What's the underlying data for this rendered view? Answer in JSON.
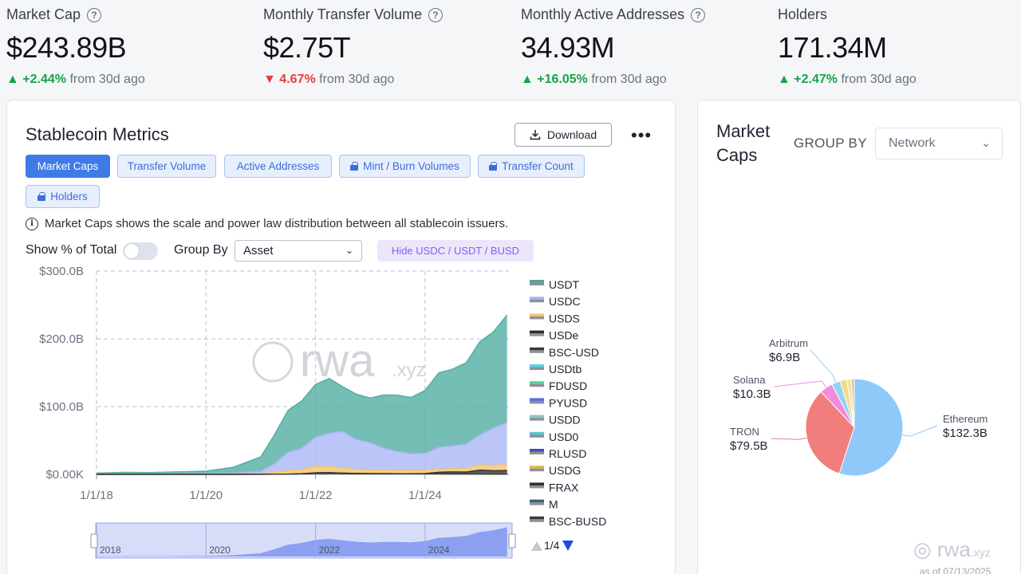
{
  "kpis": [
    {
      "title": "Market Cap",
      "value": "$243.89B",
      "direction": "up",
      "change": "+2.44%",
      "tail": "from 30d ago",
      "help": true
    },
    {
      "title": "Monthly Transfer Volume",
      "value": "$2.75T",
      "direction": "down",
      "change": "4.67%",
      "tail": "from 30d ago",
      "help": true
    },
    {
      "title": "Monthly Active Addresses",
      "value": "34.93M",
      "direction": "up",
      "change": "+16.05%",
      "tail": "from 30d ago",
      "help": true
    },
    {
      "title": "Holders",
      "value": "171.34M",
      "direction": "up",
      "change": "+2.47%",
      "tail": "from 30d ago",
      "help": false
    }
  ],
  "metrics": {
    "title": "Stablecoin Metrics",
    "download_label": "Download",
    "more_label": "•••",
    "tabs": [
      {
        "label": "Market Caps",
        "active": true,
        "locked": false
      },
      {
        "label": "Transfer Volume",
        "active": false,
        "locked": false
      },
      {
        "label": "Active Addresses",
        "active": false,
        "locked": false
      },
      {
        "label": "Mint / Burn Volumes",
        "active": false,
        "locked": true
      },
      {
        "label": "Transfer Count",
        "active": false,
        "locked": true
      },
      {
        "label": "Holders",
        "active": false,
        "locked": true
      }
    ],
    "info": "Market Caps shows the scale and power law distribution between all stablecoin issuers.",
    "show_pct_label": "Show % of Total",
    "show_pct_on": false,
    "group_by_label": "Group By",
    "group_by_value": "Asset",
    "hide_button": "Hide USDC / USDT / BUSD",
    "watermark": {
      "main": "rwa",
      "sub": ".xyz"
    },
    "legend_page": "1/4",
    "navigator_years": [
      "2018",
      "2020",
      "2022",
      "2024"
    ]
  },
  "chart_data": {
    "type": "area",
    "stacked": true,
    "ylim": [
      0,
      300
    ],
    "yticks": [
      "$0.00K",
      "$100.0B",
      "$200.0B",
      "$300.0B"
    ],
    "xticks": [
      "1/1/18",
      "1/1/20",
      "1/1/22",
      "1/1/24"
    ],
    "x": [
      "2018-01",
      "2018-07",
      "2019-01",
      "2019-07",
      "2020-01",
      "2020-07",
      "2021-01",
      "2021-04",
      "2021-07",
      "2021-10",
      "2022-01",
      "2022-04",
      "2022-07",
      "2022-10",
      "2023-01",
      "2023-04",
      "2023-07",
      "2023-10",
      "2024-01",
      "2024-04",
      "2024-07",
      "2024-10",
      "2025-01",
      "2025-04",
      "2025-07"
    ],
    "series": [
      {
        "name": "FRAX",
        "color": "#3a3a3a",
        "values": [
          0,
          0,
          0,
          0,
          0,
          0,
          0.1,
          0.2,
          0.2,
          0.8,
          2.2,
          2.5,
          1.8,
          1.3,
          1.0,
          1.0,
          0.9,
          0.9,
          0.8,
          0.7,
          0.6,
          0.6,
          0.5,
          0.4,
          0.3
        ]
      },
      {
        "name": "USDe",
        "color": "#333333",
        "values": [
          0,
          0,
          0,
          0,
          0,
          0,
          0,
          0,
          0,
          0,
          0,
          0,
          0,
          0,
          0,
          0,
          0,
          0,
          0.4,
          2.3,
          3.0,
          2.8,
          5.9,
          4.9,
          5.4
        ]
      },
      {
        "name": "USDS",
        "color": "#f4c569",
        "values": [
          0.03,
          0.05,
          0.08,
          0.1,
          0.1,
          0.3,
          1.0,
          3.0,
          5.0,
          6.5,
          9.5,
          9.0,
          7.5,
          5.8,
          5.5,
          5.2,
          4.8,
          4.5,
          4.6,
          4.7,
          4.5,
          5.2,
          7.5,
          7.8,
          8.5
        ]
      },
      {
        "name": "USDC",
        "color": "#aab7f6",
        "values": [
          0.3,
          0.4,
          0.5,
          0.6,
          0.6,
          1.2,
          3.5,
          12.0,
          27.0,
          31.0,
          43.0,
          49.0,
          54.0,
          44.0,
          40.0,
          32.0,
          28.0,
          25.0,
          25.0,
          32.0,
          34.0,
          36.0,
          44.0,
          55.0,
          62.0
        ]
      },
      {
        "name": "USDT",
        "color": "#52aea3",
        "values": [
          1.5,
          2.5,
          2.0,
          3.0,
          4.0,
          9.0,
          21.0,
          43.0,
          62.0,
          70.0,
          78.0,
          81.0,
          66.0,
          67.0,
          66.0,
          79.0,
          83.0,
          83.0,
          93.0,
          110.0,
          113.0,
          120.0,
          138.0,
          142.0,
          159.0
        ]
      }
    ],
    "legend": [
      {
        "name": "USDT",
        "color": "#4fa89d"
      },
      {
        "name": "USDC",
        "color": "#a7b6f7"
      },
      {
        "name": "USDS",
        "color": "#f4c569"
      },
      {
        "name": "USDe",
        "color": "#2b2b2b"
      },
      {
        "name": "BSC-USD",
        "color": "#3a3a3a"
      },
      {
        "name": "USDtb",
        "color": "#5ad0e6"
      },
      {
        "name": "FDUSD",
        "color": "#4fd39a"
      },
      {
        "name": "PYUSD",
        "color": "#4f6df2"
      },
      {
        "name": "USDD",
        "color": "#86c8c2"
      },
      {
        "name": "USD0",
        "color": "#52c8d8"
      },
      {
        "name": "RLUSD",
        "color": "#4b47b8"
      },
      {
        "name": "USDG",
        "color": "#e0b64a"
      },
      {
        "name": "FRAX",
        "color": "#2b2b2b"
      },
      {
        "name": "M",
        "color": "#3d6276"
      },
      {
        "name": "BSC-BUSD",
        "color": "#3a3a3a"
      }
    ]
  },
  "market_caps": {
    "title": "Market Caps",
    "group_by_label": "GROUP BY",
    "group_by_value": "Network",
    "slices": [
      {
        "name": "Ethereum",
        "value": 132.3,
        "value_label": "$132.3B",
        "color": "#8fc9fa",
        "label_line_color": "#8fc9fa"
      },
      {
        "name": "TRON",
        "value": 79.5,
        "value_label": "$79.5B",
        "color": "#f27d7d",
        "label_line_color": "#f27d7d"
      },
      {
        "name": "Solana",
        "value": 10.3,
        "value_label": "$10.3B",
        "color": "#f08bdf",
        "label_line_color": "#f08bdf"
      },
      {
        "name": "Arbitrum",
        "value": 6.9,
        "value_label": "$6.9B",
        "color": "#93d3f2",
        "label_line_color": "#93d3f2"
      },
      {
        "name": "other-1",
        "value": 5.5,
        "color": "#f6d98a"
      },
      {
        "name": "other-2",
        "value": 3.5,
        "color": "#f1e3a8"
      },
      {
        "name": "other-3",
        "value": 2.5,
        "color": "#d7c98e"
      }
    ],
    "watermark": "rwa.xyz",
    "as_of": "as of 07/13/2025"
  }
}
